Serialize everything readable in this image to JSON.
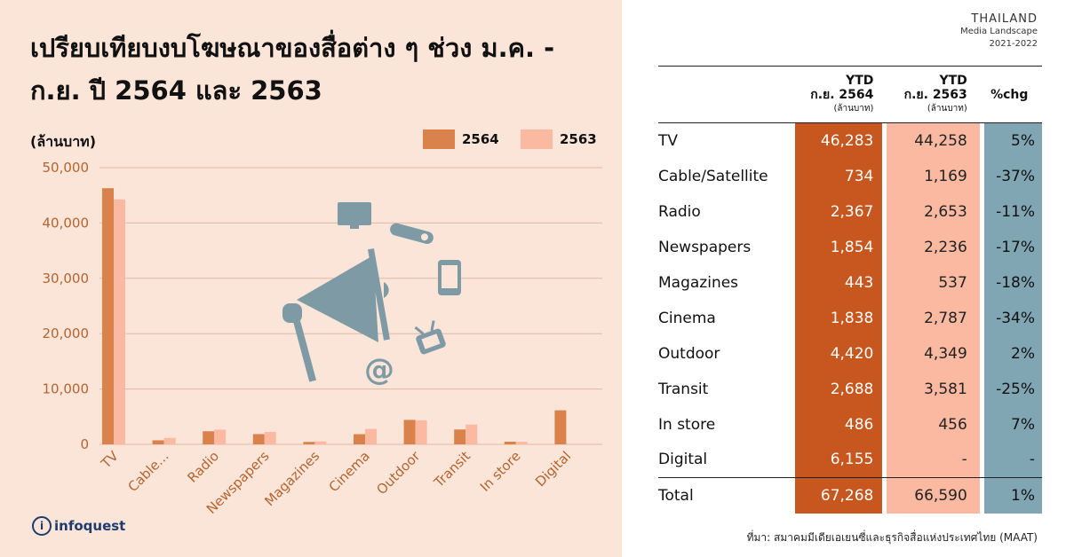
{
  "title": "เปรียบเทียบงบโฆษณาของสื่อต่าง ๆ ช่วง ม.ค. - ก.ย. ปี 2564 และ 2563",
  "unit_label": "(ล้านบาท)",
  "brand": {
    "line1": "THAILAND",
    "line2": "Media Landscape",
    "line3": "2021-2022"
  },
  "logo": {
    "mark": "i",
    "text": "infoquest"
  },
  "source": "ที่มา: สมาคมมีเดียเอเยนซี่และธุรกิจสื่อแห่งประเทศไทย (MAAT)",
  "colors": {
    "y2564": "#d9824c",
    "y2563": "#fbb9a1",
    "col2564": "#c7561f",
    "chg": "#80a5b3",
    "grid": "#e0b9a3",
    "icon": "#7e9aa5"
  },
  "icons": [
    "megaphone-icon",
    "monitor-icon",
    "radio-icon",
    "smartphone-icon",
    "tv-icon",
    "at-sign-icon"
  ],
  "chart_data": {
    "type": "bar",
    "categories": [
      "TV",
      "Cable...",
      "Radio",
      "Newspapers",
      "Magazines",
      "Cinema",
      "Outdoor",
      "Transit",
      "In store",
      "Digital"
    ],
    "series": [
      {
        "name": "2564",
        "values": [
          46283,
          734,
          2367,
          1854,
          443,
          1838,
          4420,
          2688,
          486,
          6155
        ]
      },
      {
        "name": "2563",
        "values": [
          44258,
          1169,
          2653,
          2236,
          537,
          2787,
          4349,
          3581,
          456,
          null
        ]
      }
    ],
    "yticks": [
      "0",
      "10,000",
      "20,000",
      "30,000",
      "40,000",
      "50,000"
    ],
    "ylim": [
      0,
      50000
    ],
    "grid": true,
    "legend": "top-right"
  },
  "table": {
    "headers": {
      "a_line1": "YTD",
      "a_line2": "ก.ย. 2564",
      "a_unit": "(ล้านบาท)",
      "b_line1": "YTD",
      "b_line2": "ก.ย. 2563",
      "b_unit": "(ล้านบาท)",
      "c": "%chg"
    },
    "rows": [
      {
        "name": "TV",
        "a": "46,283",
        "b": "44,258",
        "c": "5%"
      },
      {
        "name": "Cable/Satellite",
        "a": "734",
        "b": "1,169",
        "c": "-37%"
      },
      {
        "name": "Radio",
        "a": "2,367",
        "b": "2,653",
        "c": "-11%"
      },
      {
        "name": "Newspapers",
        "a": "1,854",
        "b": "2,236",
        "c": "-17%"
      },
      {
        "name": "Magazines",
        "a": "443",
        "b": "537",
        "c": "-18%"
      },
      {
        "name": "Cinema",
        "a": "1,838",
        "b": "2,787",
        "c": "-34%"
      },
      {
        "name": "Outdoor",
        "a": "4,420",
        "b": "4,349",
        "c": "2%"
      },
      {
        "name": "Transit",
        "a": "2,688",
        "b": "3,581",
        "c": "-25%"
      },
      {
        "name": "In store",
        "a": "486",
        "b": "456",
        "c": "7%"
      },
      {
        "name": "Digital",
        "a": "6,155",
        "b": "-",
        "c": "-"
      }
    ],
    "total": {
      "name": "Total",
      "a": "67,268",
      "b": "66,590",
      "c": "1%"
    }
  }
}
